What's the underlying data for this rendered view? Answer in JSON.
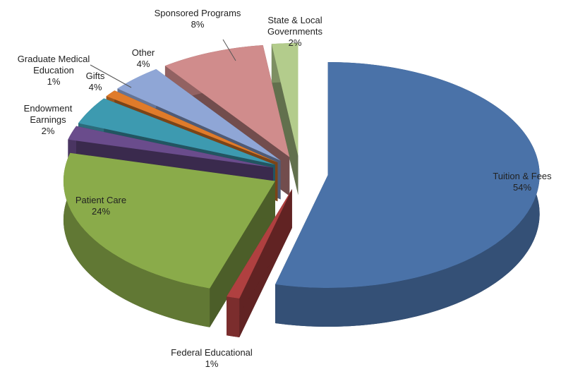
{
  "chart_data": {
    "type": "pie",
    "categories": [
      "Tuition & Fees",
      "Federal Educational",
      "Patient Care",
      "Endowment Earnings",
      "Gifts",
      "Graduate Medical Education",
      "Other",
      "Sponsored Programs",
      "State & Local Governments"
    ],
    "values": [
      54,
      1,
      24,
      2,
      4,
      1,
      4,
      8,
      2
    ],
    "value_labels": [
      "54%",
      "1%",
      "24%",
      "2%",
      "4%",
      "1%",
      "4%",
      "8%",
      "2%"
    ],
    "colors": [
      "#4a72a8",
      "#b04040",
      "#8aab4a",
      "#6a4c8c",
      "#3d9ab0",
      "#e07b2a",
      "#8fa6d6",
      "#d08c8c",
      "#b3cc8c"
    ]
  }
}
